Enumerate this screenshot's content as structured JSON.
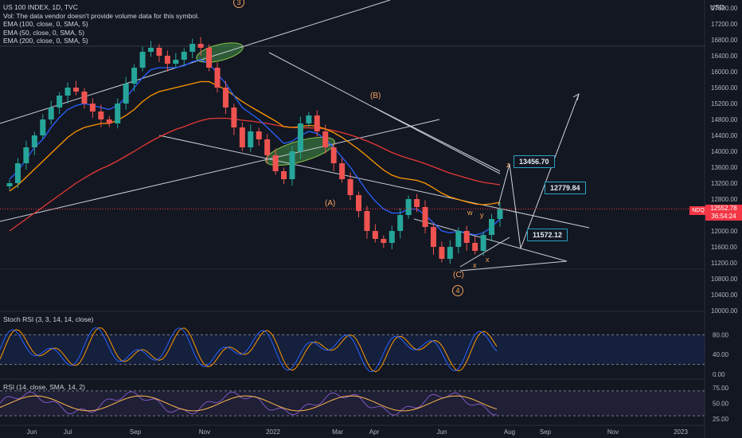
{
  "chart_data": {
    "type": "candlestick",
    "symbol": "US 100 INDEX, 1D, TVC",
    "currency": "USD",
    "legend_lines": [
      "Vol: The data vendor doesn't provide volume data for this symbol.",
      "EMA (100, close, 0, SMA, 5)",
      "EMA (50, close, 0, SMA, 5)",
      "EMA (200, close, 0, SMA, 5)"
    ],
    "price_axis_ticks": [
      "17600.00",
      "17200.00",
      "16800.00",
      "16400.00",
      "16000.00",
      "15600.00",
      "15200.00",
      "14800.00",
      "14400.00",
      "14000.00",
      "13600.00",
      "13200.00",
      "12800.00",
      "12400.00",
      "12000.00",
      "11600.00",
      "11200.00",
      "10800.00",
      "10400.00",
      "10000.00"
    ],
    "x_axis_labels": [
      "Jun",
      "Jul",
      "Sep",
      "Nov",
      "2022",
      "Mar",
      "Apr",
      "Jun",
      "Aug",
      "Sep",
      "Nov",
      "2023"
    ],
    "current_price": {
      "symbol": "NDQ",
      "value": "12552.78",
      "countdown": "36:54:24",
      "color": "#f23645"
    },
    "price_targets": [
      "13456.70",
      "12779.84",
      "11572.12"
    ],
    "wave_labels": [
      "3",
      "(B)",
      "(A)",
      "(C)",
      "4",
      "z",
      "w",
      "y",
      "x",
      "x"
    ],
    "close_series": [
      13200,
      13700,
      14100,
      14400,
      14800,
      15100,
      15400,
      15600,
      15500,
      15200,
      15000,
      14800,
      14700,
      15200,
      15700,
      16100,
      16500,
      16600,
      16400,
      16200,
      16300,
      16500,
      16700,
      16600,
      16100,
      15600,
      15100,
      14600,
      14100,
      14500,
      14300,
      13900,
      13500,
      13300,
      14000,
      14700,
      14900,
      14500,
      14100,
      13700,
      13300,
      12900,
      12500,
      12000,
      11800,
      11700,
      12000,
      12400,
      12800,
      12600,
      12100,
      11600,
      11300,
      11600,
      12000,
      11700,
      11500,
      11900,
      12300,
      12552
    ],
    "ema50": [
      13300,
      13500,
      13800,
      14100,
      14300,
      14600,
      14850,
      15050,
      15150,
      15200,
      15150,
      15100,
      15050,
      15150,
      15350,
      15600,
      15850,
      16050,
      16100,
      16100,
      16100,
      16150,
      16250,
      16300,
      16200,
      15950,
      15700,
      15400,
      15100,
      14950,
      14800,
      14600,
      14400,
      14200,
      14250,
      14400,
      14500,
      14450,
      14300,
      14100,
      13850,
      13600,
      13300,
      13000,
      12750,
      12550,
      12450,
      12450,
      12550,
      12550,
      12400,
      12200,
      12000,
      11950,
      12000,
      11950,
      11900,
      11950,
      12100,
      12300
    ],
    "ema100": [
      13000,
      13150,
      13350,
      13550,
      13750,
      13950,
      14150,
      14350,
      14500,
      14600,
      14650,
      14700,
      14700,
      14780,
      14900,
      15050,
      15250,
      15400,
      15500,
      15550,
      15600,
      15650,
      15700,
      15750,
      15750,
      15650,
      15550,
      15400,
      15250,
      15120,
      15000,
      14880,
      14760,
      14620,
      14600,
      14620,
      14650,
      14630,
      14560,
      14470,
      14350,
      14200,
      14050,
      13880,
      13700,
      13530,
      13400,
      13330,
      13300,
      13270,
      13200,
      13080,
      12950,
      12850,
      12790,
      12730,
      12680,
      12660,
      12680,
      12720
    ],
    "ema200": [
      12000,
      12150,
      12300,
      12450,
      12600,
      12750,
      12900,
      13050,
      13200,
      13330,
      13450,
      13560,
      13650,
      13760,
      13880,
      14000,
      14130,
      14250,
      14360,
      14460,
      14550,
      14620,
      14700,
      14770,
      14820,
      14830,
      14830,
      14810,
      14780,
      14760,
      14730,
      14700,
      14660,
      14620,
      14600,
      14590,
      14590,
      14580,
      14560,
      14520,
      14470,
      14410,
      14340,
      14260,
      14170,
      14070,
      13970,
      13890,
      13820,
      13760,
      13690,
      13610,
      13530,
      13450,
      13390,
      13330,
      13270,
      13220,
      13190,
      13160
    ],
    "stoch_rsi": {
      "label": "Stoch RSI (3, 3, 14, 14, close)",
      "ticks": [
        "80.00",
        "40.00",
        "0.00"
      ],
      "bands": [
        80,
        20
      ]
    },
    "rsi": {
      "label": "RSI (14, close, SMA, 14, 2)",
      "ticks": [
        "75.00",
        "50.00",
        "25.00"
      ],
      "bands": [
        70,
        30
      ]
    },
    "colors": {
      "background": "#131722",
      "up": "#26a69a",
      "down": "#ef5350",
      "ema50": "#2962ff",
      "ema100": "#ff9800",
      "ema200": "#e53935",
      "stoch_k": "#2962ff",
      "stoch_d": "#ff9800",
      "rsi_line": "#7e57c2",
      "rsi_ma": "#ffb74d",
      "target_box": "#2aa3c7",
      "wave": "#f5a35b"
    }
  }
}
